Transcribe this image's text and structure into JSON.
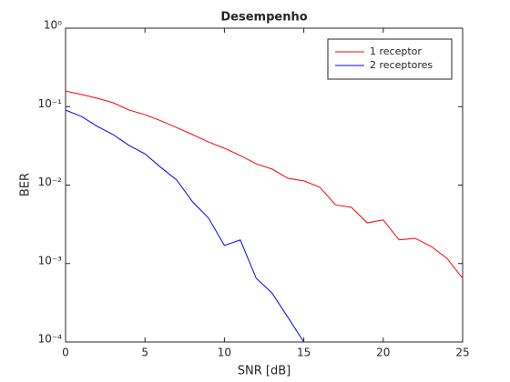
{
  "chart_data": {
    "type": "line",
    "title": "Desempenho",
    "xlabel": "SNR [dB]",
    "ylabel": "BER",
    "x": [
      0,
      1,
      2,
      3,
      4,
      5,
      6,
      7,
      8,
      9,
      10,
      11,
      12,
      13,
      14,
      15,
      16,
      17,
      18,
      19,
      20,
      21,
      22,
      23,
      24,
      25
    ],
    "series": [
      {
        "name": "1 receptor",
        "color": "#ff0000",
        "values": [
          0.158,
          0.143,
          0.128,
          0.112,
          0.0905,
          0.079,
          0.066,
          0.054,
          0.044,
          0.0355,
          0.0295,
          0.0238,
          0.0187,
          0.016,
          0.0122,
          0.0113,
          0.0094,
          0.0056,
          0.0052,
          0.0033,
          0.0036,
          0.002,
          0.0021,
          0.00166,
          0.00117,
          0.00065
        ]
      },
      {
        "name": "2 receptores",
        "color": "#0000ff",
        "values": [
          0.0905,
          0.075,
          0.056,
          0.044,
          0.032,
          0.025,
          0.0168,
          0.0116,
          0.0061,
          0.0038,
          0.0017,
          0.002,
          0.00065,
          0.00042,
          0.000206,
          0.0001,
          null,
          null,
          null,
          null,
          null,
          null,
          null,
          null,
          null,
          null
        ]
      }
    ],
    "xlim": [
      0,
      25
    ],
    "xticks": [
      0,
      5,
      10,
      15,
      20,
      25
    ],
    "ylim": [
      0.0001,
      1
    ],
    "yscale": "log",
    "yticks": [
      {
        "value": 0.0001,
        "label": "10⁻⁴"
      },
      {
        "value": 0.001,
        "label": "10⁻³"
      },
      {
        "value": 0.01,
        "label": "10⁻²"
      },
      {
        "value": 0.1,
        "label": "10⁻¹"
      },
      {
        "value": 1,
        "label": "10⁰"
      }
    ],
    "legend": "upper right"
  }
}
